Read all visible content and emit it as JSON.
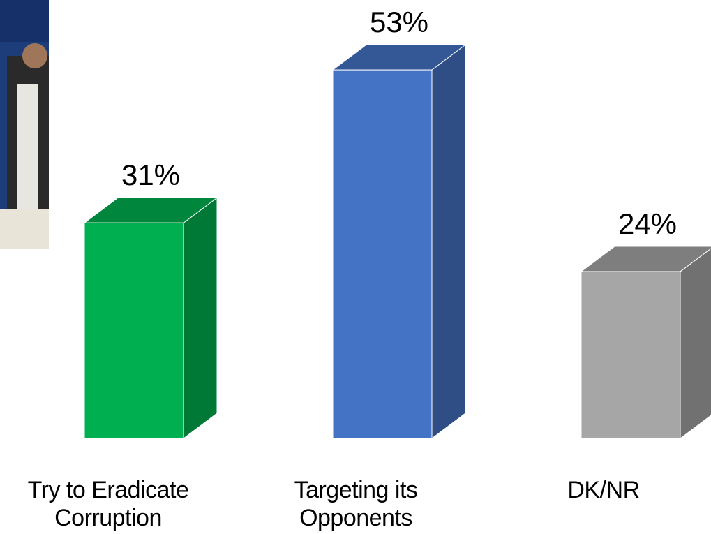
{
  "chart_data": {
    "type": "bar3d",
    "categories": [
      "Try to Eradicate Corruption",
      "Targeting its Opponents",
      "DK/NR"
    ],
    "values": [
      31,
      53,
      24
    ],
    "value_labels": [
      "31%",
      "53%",
      "24%"
    ],
    "colors": [
      "#00b050",
      "#4472c4",
      "#a6a6a6"
    ]
  }
}
